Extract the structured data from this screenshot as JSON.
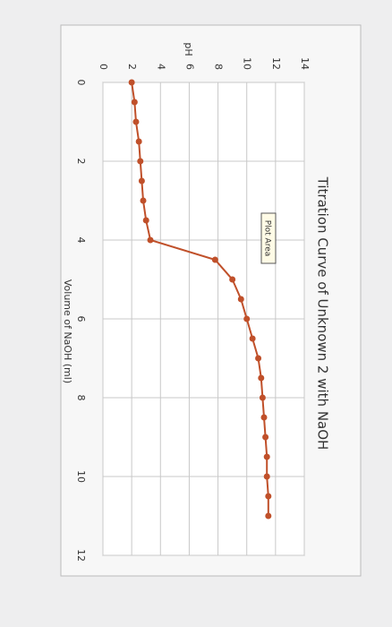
{
  "chart_data": {
    "type": "line",
    "title": "Titration Curve of Unknown 2 with NaOH",
    "x_label": "Volume of NaOH (ml)",
    "y_label": "pH",
    "annotation": "Plot Area",
    "x": [
      0,
      0.5,
      1.0,
      1.5,
      2.0,
      2.5,
      3.0,
      3.5,
      4.0,
      4.5,
      5.0,
      5.5,
      6.0,
      6.5,
      7.0,
      7.5,
      8.0,
      8.5,
      9.0,
      9.5,
      10.0,
      10.5,
      11.0
    ],
    "series": [
      {
        "name": "pH",
        "color": "#c0502a",
        "values": [
          2.0,
          2.2,
          2.3,
          2.5,
          2.6,
          2.7,
          2.8,
          3.0,
          3.3,
          7.8,
          9.0,
          9.6,
          10.0,
          10.4,
          10.8,
          11.0,
          11.1,
          11.2,
          11.3,
          11.4,
          11.4,
          11.5,
          11.5
        ]
      }
    ],
    "xlim": [
      0,
      12
    ],
    "xticks": [
      0,
      2,
      4,
      6,
      8,
      10,
      12
    ],
    "ylim": [
      0,
      14
    ],
    "yticks": [
      0,
      2,
      4,
      6,
      8,
      10,
      12,
      14
    ],
    "grid": true
  }
}
